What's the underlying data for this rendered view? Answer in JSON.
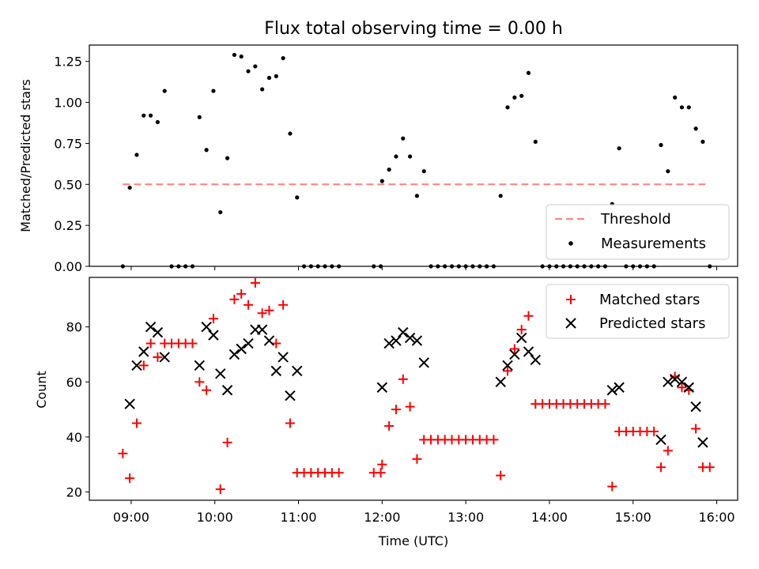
{
  "chart_data": [
    {
      "type": "scatter",
      "title": "Flux total observing time = 0.00 h",
      "ylabel": "Matched/Predicted stars",
      "xlabel": "",
      "xlim": [
        "08:30",
        "16:15"
      ],
      "ylim": [
        0,
        1.35
      ],
      "yticks": [
        "0.00",
        "0.25",
        "0.50",
        "0.75",
        "1.00",
        "1.25"
      ],
      "legend_position": "lower-right",
      "series": [
        {
          "name": "Threshold",
          "style": "dashed-line",
          "color": "#ff7f7f",
          "points": [
            [
              "08:54",
              0.5
            ],
            [
              "15:54",
              0.5
            ]
          ]
        },
        {
          "name": "Measurements",
          "style": "dot",
          "color": "#000000",
          "points": [
            [
              "08:54",
              0.0
            ],
            [
              "08:59",
              0.48
            ],
            [
              "09:04",
              0.68
            ],
            [
              "09:09",
              0.92
            ],
            [
              "09:14",
              0.92
            ],
            [
              "09:19",
              0.88
            ],
            [
              "09:24",
              1.07
            ],
            [
              "09:29",
              0.0
            ],
            [
              "09:34",
              0.0
            ],
            [
              "09:39",
              0.0
            ],
            [
              "09:44",
              0.0
            ],
            [
              "09:49",
              0.91
            ],
            [
              "09:54",
              0.71
            ],
            [
              "09:59",
              1.07
            ],
            [
              "10:04",
              0.33
            ],
            [
              "10:09",
              0.66
            ],
            [
              "10:14",
              1.29
            ],
            [
              "10:19",
              1.28
            ],
            [
              "10:24",
              1.19
            ],
            [
              "10:29",
              1.22
            ],
            [
              "10:34",
              1.08
            ],
            [
              "10:39",
              1.15
            ],
            [
              "10:44",
              1.16
            ],
            [
              "10:49",
              1.27
            ],
            [
              "10:54",
              0.81
            ],
            [
              "10:59",
              0.42
            ],
            [
              "11:04",
              0.0
            ],
            [
              "11:09",
              0.0
            ],
            [
              "11:14",
              0.0
            ],
            [
              "11:19",
              0.0
            ],
            [
              "11:24",
              0.0
            ],
            [
              "11:29",
              0.0
            ],
            [
              "11:54",
              0.0
            ],
            [
              "11:59",
              0.0
            ],
            [
              "12:00",
              0.52
            ],
            [
              "12:05",
              0.59
            ],
            [
              "12:10",
              0.67
            ],
            [
              "12:15",
              0.78
            ],
            [
              "12:20",
              0.67
            ],
            [
              "12:25",
              0.43
            ],
            [
              "12:30",
              0.58
            ],
            [
              "12:35",
              0.0
            ],
            [
              "12:40",
              0.0
            ],
            [
              "12:45",
              0.0
            ],
            [
              "12:50",
              0.0
            ],
            [
              "12:55",
              0.0
            ],
            [
              "13:00",
              0.0
            ],
            [
              "13:05",
              0.0
            ],
            [
              "13:10",
              0.0
            ],
            [
              "13:15",
              0.0
            ],
            [
              "13:20",
              0.0
            ],
            [
              "13:25",
              0.43
            ],
            [
              "13:30",
              0.97
            ],
            [
              "13:35",
              1.03
            ],
            [
              "13:40",
              1.04
            ],
            [
              "13:45",
              1.18
            ],
            [
              "13:50",
              0.76
            ],
            [
              "13:55",
              0.0
            ],
            [
              "14:00",
              0.0
            ],
            [
              "14:05",
              0.0
            ],
            [
              "14:10",
              0.0
            ],
            [
              "14:15",
              0.0
            ],
            [
              "14:20",
              0.0
            ],
            [
              "14:25",
              0.0
            ],
            [
              "14:30",
              0.0
            ],
            [
              "14:35",
              0.0
            ],
            [
              "14:40",
              0.0
            ],
            [
              "14:45",
              0.38
            ],
            [
              "14:50",
              0.72
            ],
            [
              "14:55",
              0.0
            ],
            [
              "15:00",
              0.0
            ],
            [
              "15:05",
              0.0
            ],
            [
              "15:10",
              0.0
            ],
            [
              "15:15",
              0.0
            ],
            [
              "15:20",
              0.74
            ],
            [
              "15:25",
              0.58
            ],
            [
              "15:30",
              1.03
            ],
            [
              "15:35",
              0.97
            ],
            [
              "15:40",
              0.97
            ],
            [
              "15:45",
              0.84
            ],
            [
              "15:50",
              0.76
            ],
            [
              "15:55",
              0.0
            ]
          ]
        }
      ]
    },
    {
      "type": "scatter",
      "title": "",
      "ylabel": "Count",
      "xlabel": "Time (UTC)",
      "xlim": [
        "08:30",
        "16:15"
      ],
      "ylim": [
        17,
        98
      ],
      "xticks": [
        "09:00",
        "10:00",
        "11:00",
        "12:00",
        "13:00",
        "14:00",
        "15:00",
        "16:00"
      ],
      "yticks": [
        "20",
        "40",
        "60",
        "80"
      ],
      "legend_position": "upper-right",
      "series": [
        {
          "name": "Matched stars",
          "style": "plus",
          "color": "#ff0000",
          "points": [
            [
              "08:54",
              34
            ],
            [
              "08:59",
              25
            ],
            [
              "09:04",
              45
            ],
            [
              "09:09",
              66
            ],
            [
              "09:14",
              74
            ],
            [
              "09:19",
              69
            ],
            [
              "09:24",
              74
            ],
            [
              "09:29",
              74
            ],
            [
              "09:34",
              74
            ],
            [
              "09:39",
              74
            ],
            [
              "09:44",
              74
            ],
            [
              "09:49",
              60
            ],
            [
              "09:54",
              57
            ],
            [
              "09:59",
              83
            ],
            [
              "10:04",
              21
            ],
            [
              "10:09",
              38
            ],
            [
              "10:14",
              90
            ],
            [
              "10:19",
              92
            ],
            [
              "10:24",
              88
            ],
            [
              "10:29",
              96
            ],
            [
              "10:34",
              85
            ],
            [
              "10:39",
              86
            ],
            [
              "10:44",
              74
            ],
            [
              "10:49",
              88
            ],
            [
              "10:54",
              45
            ],
            [
              "10:59",
              27
            ],
            [
              "11:04",
              27
            ],
            [
              "11:09",
              27
            ],
            [
              "11:14",
              27
            ],
            [
              "11:19",
              27
            ],
            [
              "11:24",
              27
            ],
            [
              "11:29",
              27
            ],
            [
              "11:54",
              27
            ],
            [
              "11:59",
              27
            ],
            [
              "12:00",
              30
            ],
            [
              "12:05",
              44
            ],
            [
              "12:10",
              50
            ],
            [
              "12:15",
              61
            ],
            [
              "12:20",
              51
            ],
            [
              "12:25",
              32
            ],
            [
              "12:30",
              39
            ],
            [
              "12:35",
              39
            ],
            [
              "12:40",
              39
            ],
            [
              "12:45",
              39
            ],
            [
              "12:50",
              39
            ],
            [
              "12:55",
              39
            ],
            [
              "13:00",
              39
            ],
            [
              "13:05",
              39
            ],
            [
              "13:10",
              39
            ],
            [
              "13:15",
              39
            ],
            [
              "13:20",
              39
            ],
            [
              "13:25",
              26
            ],
            [
              "13:30",
              64
            ],
            [
              "13:35",
              72
            ],
            [
              "13:40",
              79
            ],
            [
              "13:45",
              84
            ],
            [
              "13:50",
              52
            ],
            [
              "13:55",
              52
            ],
            [
              "14:00",
              52
            ],
            [
              "14:05",
              52
            ],
            [
              "14:10",
              52
            ],
            [
              "14:15",
              52
            ],
            [
              "14:20",
              52
            ],
            [
              "14:25",
              52
            ],
            [
              "14:30",
              52
            ],
            [
              "14:35",
              52
            ],
            [
              "14:40",
              52
            ],
            [
              "14:45",
              22
            ],
            [
              "14:50",
              42
            ],
            [
              "14:55",
              42
            ],
            [
              "15:00",
              42
            ],
            [
              "15:05",
              42
            ],
            [
              "15:10",
              42
            ],
            [
              "15:15",
              42
            ],
            [
              "15:20",
              29
            ],
            [
              "15:25",
              35
            ],
            [
              "15:30",
              62
            ],
            [
              "15:35",
              58
            ],
            [
              "15:40",
              57
            ],
            [
              "15:45",
              43
            ],
            [
              "15:50",
              29
            ],
            [
              "15:55",
              29
            ]
          ]
        },
        {
          "name": "Predicted stars",
          "style": "x",
          "color": "#000000",
          "points": [
            [
              "08:59",
              52
            ],
            [
              "09:04",
              66
            ],
            [
              "09:09",
              71
            ],
            [
              "09:14",
              80
            ],
            [
              "09:19",
              78
            ],
            [
              "09:24",
              69
            ],
            [
              "09:49",
              66
            ],
            [
              "09:54",
              80
            ],
            [
              "09:59",
              77
            ],
            [
              "10:04",
              63
            ],
            [
              "10:09",
              57
            ],
            [
              "10:14",
              70
            ],
            [
              "10:19",
              72
            ],
            [
              "10:24",
              74
            ],
            [
              "10:29",
              79
            ],
            [
              "10:34",
              79
            ],
            [
              "10:39",
              75
            ],
            [
              "10:44",
              64
            ],
            [
              "10:49",
              69
            ],
            [
              "10:54",
              55
            ],
            [
              "10:59",
              64
            ],
            [
              "12:00",
              58
            ],
            [
              "12:05",
              74
            ],
            [
              "12:10",
              75
            ],
            [
              "12:15",
              78
            ],
            [
              "12:20",
              76
            ],
            [
              "12:25",
              75
            ],
            [
              "12:30",
              67
            ],
            [
              "13:25",
              60
            ],
            [
              "13:30",
              66
            ],
            [
              "13:35",
              70
            ],
            [
              "13:40",
              76
            ],
            [
              "13:45",
              71
            ],
            [
              "13:50",
              68
            ],
            [
              "14:45",
              57
            ],
            [
              "14:50",
              58
            ],
            [
              "15:20",
              39
            ],
            [
              "15:25",
              60
            ],
            [
              "15:30",
              61
            ],
            [
              "15:35",
              60
            ],
            [
              "15:40",
              58
            ],
            [
              "15:45",
              51
            ],
            [
              "15:50",
              38
            ]
          ]
        }
      ]
    }
  ]
}
